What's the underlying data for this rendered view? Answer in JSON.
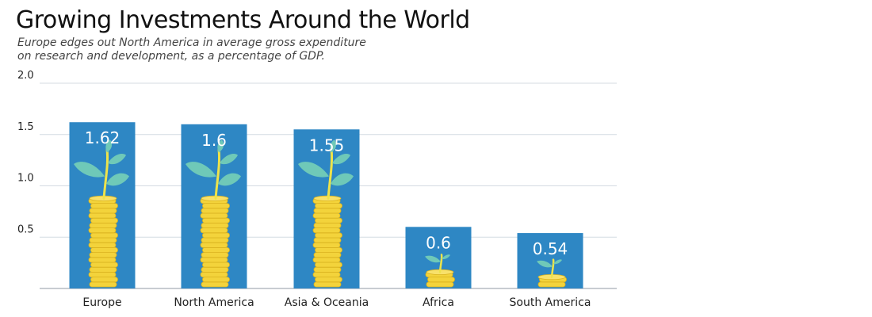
{
  "chart_data": {
    "type": "bar",
    "title": "Growing Investments Around the World",
    "subtitle": "Europe edges out North America in average gross expenditure on research and development, as a percentage of GDP.",
    "categories": [
      "Europe",
      "North America",
      "Asia & Oceania",
      "Africa",
      "South America"
    ],
    "values": [
      1.62,
      1.6,
      1.55,
      0.6,
      0.54
    ],
    "value_labels": [
      "1.62",
      "1.6",
      "1.55",
      "0.6",
      "0.54"
    ],
    "xlabel": "",
    "ylabel": "",
    "ylim": [
      0,
      2.0
    ],
    "yticks": [
      0.5,
      1.0,
      1.5,
      2.0
    ],
    "ytick_labels": [
      "0.5",
      "1.0",
      "1.5",
      "2.0"
    ],
    "grid": true,
    "legend": "none",
    "colors": {
      "bar": "#2e87c4",
      "gridline": "#d4dbe2",
      "axis": "#b5bcc4",
      "label_text": "#ffffff",
      "tick_text": "#222222",
      "coin": "#f3d33b",
      "coin_edge": "#d9b21f",
      "leaf": "#6fc9b8",
      "stem": "#eee34a"
    },
    "decorations": {
      "bar_icon": "coin-stack-with-sprout-icon"
    }
  }
}
